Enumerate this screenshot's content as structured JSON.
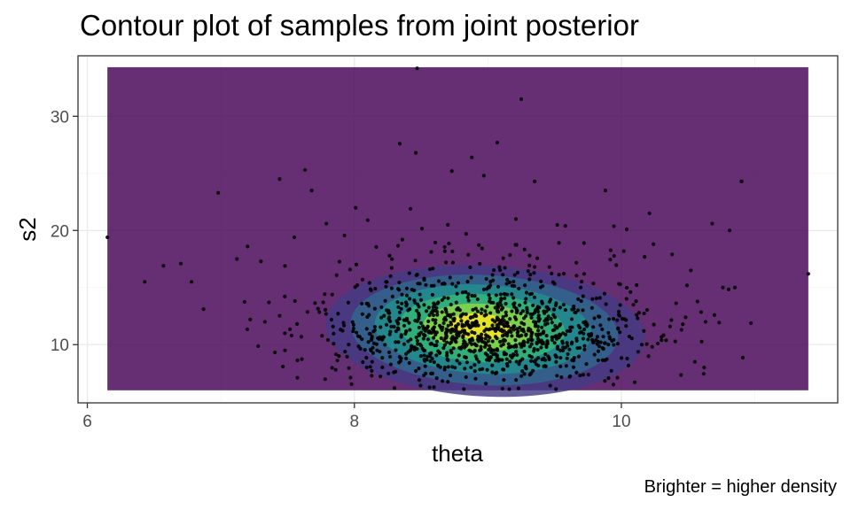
{
  "chart_data": {
    "type": "contour",
    "title": "Contour plot of samples from joint posterior",
    "xlabel": "theta",
    "ylabel": "s2",
    "caption": "Brighter = higher density",
    "xlim": [
      5.93,
      11.62
    ],
    "ylim": [
      4.9,
      35.3
    ],
    "x_ticks": [
      6,
      8,
      10
    ],
    "y_ticks": [
      10,
      20,
      30
    ],
    "x_tick_labels": [
      "6",
      "8",
      "10"
    ],
    "y_tick_labels": [
      "10",
      "20",
      "30"
    ],
    "grid": true,
    "density_region": {
      "x": [
        6.15,
        11.4
      ],
      "y": [
        6.0,
        34.3
      ]
    },
    "density_center": {
      "theta": 8.98,
      "s2": 11.2
    },
    "density_levels": 7,
    "fill_colors": [
      "#440154",
      "#443a83",
      "#31688e",
      "#21908d",
      "#35b779",
      "#8fd744",
      "#fde725"
    ],
    "point_color": "#000000",
    "n_points": 1200,
    "points": [
      [
        6.15,
        19.4
      ],
      [
        11.4,
        16.2
      ],
      [
        8.47,
        34.2
      ],
      [
        9.25,
        31.5
      ],
      [
        8.34,
        27.6
      ],
      [
        8.88,
        26.4
      ],
      [
        9.07,
        27.7
      ],
      [
        8.73,
        25.2
      ],
      [
        8.97,
        24.8
      ],
      [
        7.63,
        25.3
      ],
      [
        7.68,
        23.5
      ],
      [
        7.44,
        24.5
      ],
      [
        6.98,
        23.3
      ],
      [
        9.35,
        24.3
      ],
      [
        10.9,
        24.3
      ],
      [
        10.9,
        24.3
      ],
      [
        8.46,
        26.8
      ],
      [
        10.85,
        15.0
      ],
      [
        10.76,
        15.0
      ],
      [
        6.78,
        15.5
      ],
      [
        6.43,
        15.5
      ],
      [
        6.7,
        17.1
      ],
      [
        6.57,
        16.9
      ],
      [
        6.87,
        13.1
      ],
      [
        7.12,
        17.5
      ],
      [
        10.21,
        21.5
      ],
      [
        10.04,
        20.1
      ],
      [
        10.81,
        20.0
      ],
      [
        10.68,
        20.6
      ],
      [
        9.88,
        23.5
      ],
      [
        10.55,
        8.5
      ],
      [
        10.62,
        8.0
      ],
      [
        8.3,
        6.2
      ],
      [
        8.82,
        6.1
      ],
      [
        9.16,
        6.1
      ],
      [
        9.51,
        6.1
      ],
      [
        9.94,
        6.5
      ],
      [
        10.1,
        6.7
      ],
      [
        7.48,
        9.5
      ],
      [
        7.33,
        12.0
      ],
      [
        7.22,
        12.2
      ],
      [
        7.55,
        19.4
      ],
      [
        7.79,
        20.6
      ],
      [
        8.1,
        20.9
      ],
      [
        8.42,
        21.9
      ],
      [
        8.7,
        20.5
      ],
      [
        9.21,
        21.0
      ],
      [
        9.58,
        20.4
      ],
      [
        9.72,
        18.9
      ],
      [
        10.24,
        18.8
      ],
      [
        10.38,
        17.9
      ],
      [
        10.52,
        16.5
      ],
      [
        10.63,
        12.0
      ],
      [
        10.45,
        11.3
      ],
      [
        7.86,
        7.8
      ],
      [
        8.13,
        7.7
      ],
      [
        9.69,
        7.3
      ],
      [
        9.97,
        7.1
      ],
      [
        7.2,
        18.6
      ],
      [
        7.36,
        13.7
      ]
    ]
  }
}
